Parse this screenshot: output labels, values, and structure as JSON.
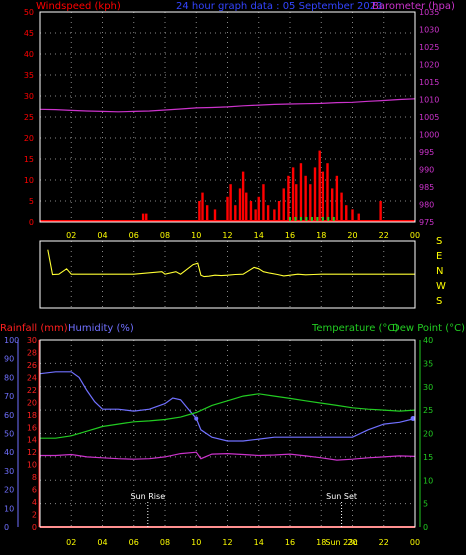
{
  "colors": {
    "wind": "#ff0000",
    "baro": "#cc33cc",
    "humidity": "#7070ff",
    "rain": "#ff2020",
    "temp": "#22cc22",
    "dew": "#22cc22",
    "dir": "#ffff33",
    "axisText": "#ffff00",
    "grid": "#888888",
    "frame": "#ffffff",
    "title": "#3344ff"
  },
  "header": {
    "windspeed": "Windspeed (kph)",
    "title": "24 hour graph data : 05 September 2023",
    "barometer": "Barometer (hpa)"
  },
  "lower_header": {
    "rainfall": "Rainfall (mm)",
    "humidity": "Humidity (%)",
    "temperature": "Temperature (°C)",
    "dewpoint": "Dew Point (°C)"
  },
  "chart_data": [
    {
      "type": "bar",
      "title": "24 hour graph data : 05 September 2023",
      "ylabel": "Windspeed (kph)",
      "ylabel_right": "Barometer (hpa)",
      "ylim": [
        0,
        50
      ],
      "ylim_right": [
        975,
        1035
      ],
      "x_ticks": [
        "02",
        "04",
        "06",
        "08",
        "10",
        "12",
        "14",
        "16",
        "18",
        "20",
        "22",
        "00"
      ],
      "y_ticks": [
        "0",
        "5",
        "10",
        "15",
        "20",
        "25",
        "30",
        "35",
        "40",
        "45",
        "50"
      ],
      "y_ticks_right": [
        "975",
        "980",
        "985",
        "990",
        "995",
        "1000",
        "1005",
        "1010",
        "1015",
        "1020",
        "1025",
        "1030",
        "1035"
      ],
      "series": [
        {
          "name": "Windspeed (kph)",
          "points": [
            [
              6.6,
              2
            ],
            [
              6.8,
              2
            ],
            [
              10.2,
              5
            ],
            [
              10.4,
              7
            ],
            [
              10.7,
              4
            ],
            [
              11.2,
              3
            ],
            [
              12.0,
              6
            ],
            [
              12.2,
              9
            ],
            [
              12.5,
              4
            ],
            [
              12.8,
              8
            ],
            [
              13.0,
              12
            ],
            [
              13.2,
              7
            ],
            [
              13.5,
              5
            ],
            [
              13.8,
              3
            ],
            [
              14.0,
              6
            ],
            [
              14.3,
              9
            ],
            [
              14.6,
              4
            ],
            [
              15.0,
              3
            ],
            [
              15.3,
              5
            ],
            [
              15.6,
              8
            ],
            [
              15.9,
              11
            ],
            [
              16.2,
              13
            ],
            [
              16.4,
              9
            ],
            [
              16.7,
              14
            ],
            [
              17.0,
              11
            ],
            [
              17.3,
              9
            ],
            [
              17.6,
              13
            ],
            [
              17.9,
              17
            ],
            [
              18.1,
              12
            ],
            [
              18.4,
              14
            ],
            [
              18.7,
              8
            ],
            [
              19.0,
              11
            ],
            [
              19.3,
              7
            ],
            [
              19.6,
              4
            ],
            [
              20.0,
              3
            ],
            [
              20.4,
              2
            ],
            [
              21.8,
              5
            ]
          ]
        },
        {
          "name": "Barometer (hpa)",
          "x": [
            0,
            1,
            2,
            3,
            4,
            5,
            6,
            7,
            8,
            9,
            10,
            11,
            12,
            13,
            14,
            15,
            16,
            17,
            18,
            19,
            20,
            21,
            22,
            23,
            24
          ],
          "values": [
            1007.2,
            1007.1,
            1006.9,
            1006.7,
            1006.6,
            1006.5,
            1006.6,
            1006.7,
            1007.0,
            1007.3,
            1007.6,
            1007.7,
            1007.9,
            1008.2,
            1008.4,
            1008.6,
            1008.7,
            1008.8,
            1008.9,
            1009.1,
            1009.2,
            1009.5,
            1009.7,
            1010.0,
            1010.2
          ]
        }
      ]
    },
    {
      "type": "line",
      "y_labels_right": [
        "S",
        "E",
        "N",
        "W",
        "S"
      ],
      "x_ticks": [
        "02",
        "04",
        "06",
        "08",
        "10",
        "12",
        "14",
        "16",
        "18",
        "20",
        "22",
        "00"
      ],
      "series": [
        {
          "name": "Wind direction",
          "x": [
            0.5,
            0.8,
            1.2,
            1.7,
            2.0,
            6.0,
            7.8,
            8.0,
            8.7,
            9.0,
            9.8,
            10.1,
            10.3,
            10.5,
            10.8,
            11.2,
            11.6,
            12.0,
            12.5,
            13.0,
            13.4,
            13.7,
            14.0,
            14.3,
            14.7,
            15.2,
            15.6,
            16.0,
            16.5,
            17.0,
            17.5,
            18.0,
            18.4,
            24.0
          ],
          "values": [
            -85,
            90,
            88,
            50,
            88,
            88,
            70,
            88,
            70,
            88,
            20,
            10,
            95,
            105,
            102,
            95,
            98,
            95,
            90,
            88,
            60,
            40,
            50,
            70,
            80,
            90,
            100,
            95,
            88,
            92,
            90,
            88,
            88,
            88
          ]
        }
      ]
    },
    {
      "type": "line",
      "x_ticks": [
        "02",
        "04",
        "06",
        "08",
        "10",
        "12",
        "14",
        "16",
        "18",
        "20",
        "22",
        "00"
      ],
      "y_ticks_humidity": [
        "0",
        "10",
        "20",
        "30",
        "40",
        "50",
        "60",
        "70",
        "80",
        "90",
        "100"
      ],
      "y_ticks_rain": [
        "0",
        "2",
        "4",
        "6",
        "8",
        "10",
        "12",
        "14",
        "16",
        "18",
        "20",
        "22",
        "24",
        "26",
        "28",
        "30"
      ],
      "y_ticks_temp": [
        "0",
        "5",
        "10",
        "15",
        "20",
        "25",
        "30",
        "35",
        "40"
      ],
      "annotations": [
        "Sun Rise",
        "Sun Set",
        "Sun 23c"
      ],
      "series": [
        {
          "name": "Humidity (%)",
          "x": [
            0,
            1,
            2,
            2.5,
            3.0,
            3.5,
            4.0,
            5,
            6,
            7,
            8,
            8.5,
            9,
            9.5,
            10,
            10.3,
            11,
            12,
            13,
            14,
            15,
            16,
            17,
            18,
            19,
            20,
            21,
            22,
            23,
            24
          ],
          "values": [
            82,
            83,
            83,
            80,
            73,
            67,
            63,
            63,
            62,
            63,
            66,
            69,
            68,
            63,
            58,
            52,
            48,
            46,
            46,
            47,
            48,
            48,
            48,
            48,
            48,
            48,
            52,
            55,
            56,
            58
          ]
        },
        {
          "name": "Temperature (°C)",
          "x": [
            0,
            1,
            2,
            3,
            4,
            5,
            6,
            7,
            8,
            9,
            10,
            11,
            12,
            13,
            14,
            15,
            16,
            17,
            18,
            19,
            20,
            21,
            22,
            23,
            24
          ],
          "values": [
            19.0,
            19.0,
            19.5,
            20.5,
            21.5,
            22.0,
            22.5,
            22.7,
            23.0,
            23.5,
            24.5,
            26.0,
            27.0,
            28.0,
            28.5,
            28.0,
            27.5,
            27.0,
            26.5,
            26.0,
            25.5,
            25.2,
            25.0,
            24.8,
            25.0
          ]
        },
        {
          "name": "Dew Point (°C)",
          "x": [
            0,
            1,
            2,
            3,
            4,
            5,
            6,
            7,
            8,
            9,
            10,
            10.3,
            11,
            12,
            13,
            14,
            15,
            16,
            17,
            18,
            19,
            20,
            21,
            22,
            23,
            24
          ],
          "values": [
            15.3,
            15.3,
            15.5,
            15.0,
            14.8,
            14.6,
            14.5,
            14.6,
            15.0,
            15.7,
            16.0,
            14.6,
            15.6,
            15.7,
            15.5,
            15.3,
            15.4,
            15.6,
            15.2,
            14.8,
            14.3,
            14.5,
            14.8,
            15.0,
            15.2,
            15.1
          ]
        },
        {
          "name": "Rainfall (mm)",
          "x": [
            0,
            24
          ],
          "values": [
            0,
            0
          ]
        }
      ]
    }
  ]
}
